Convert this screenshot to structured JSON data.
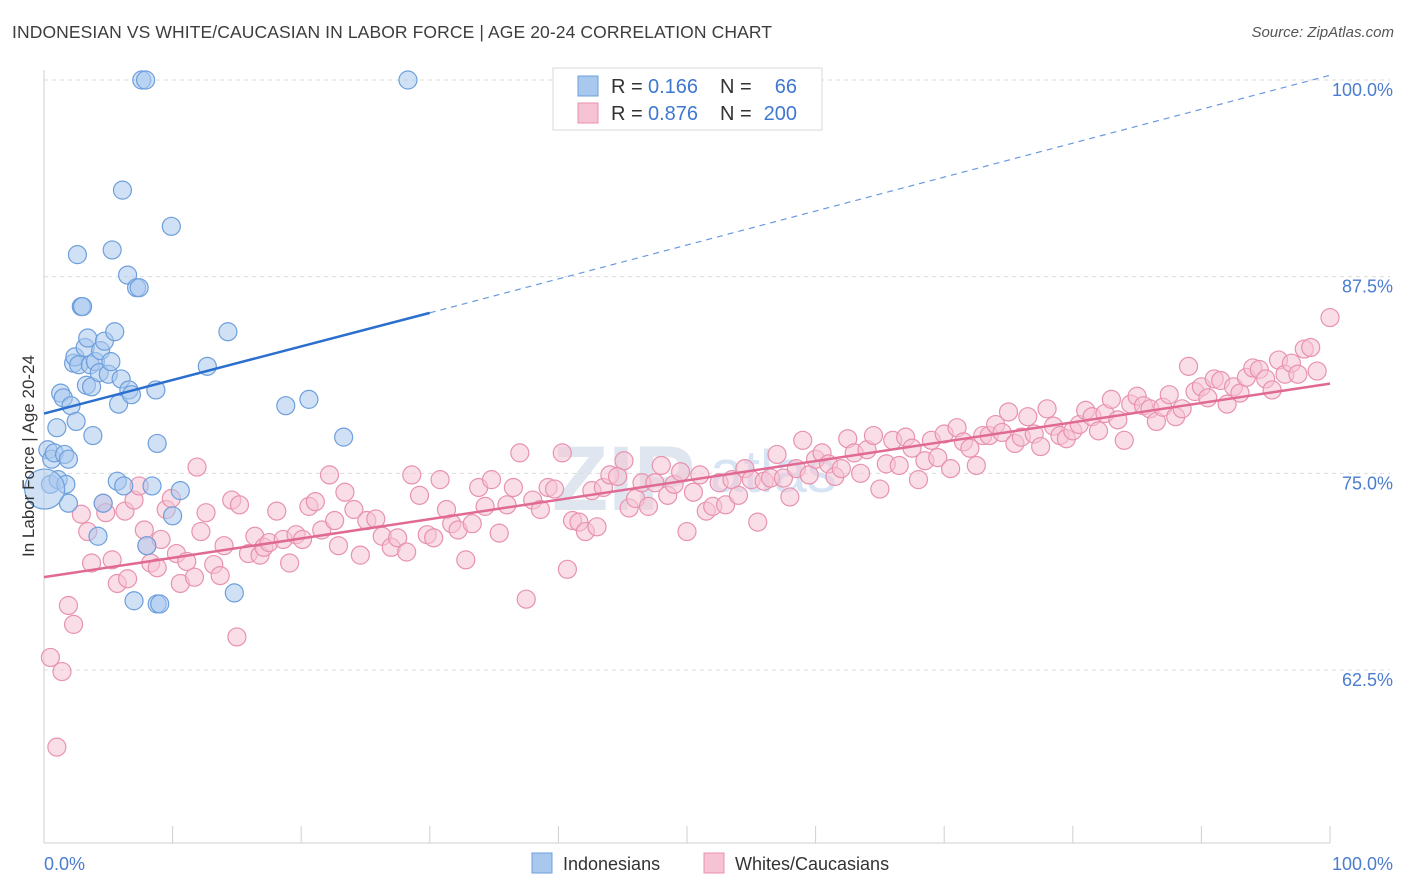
{
  "title": "INDONESIAN VS WHITE/CAUCASIAN IN LABOR FORCE | AGE 20-24 CORRELATION CHART",
  "source": "Source: ZipAtlas.com",
  "watermark": {
    "main": "ZIP",
    "sub": "atlas"
  },
  "colors": {
    "blue_fill": "#a9c8ee",
    "blue_stroke": "#6d9fdc",
    "blue_line": "#2b6fce",
    "pink_fill": "#f6c3d4",
    "pink_stroke": "#e892ae",
    "pink_line": "#e06a93",
    "grid": "#dcdcdc",
    "tick_text": "#4a7cd0"
  },
  "legend": {
    "rows": [
      {
        "r_label": "R =",
        "r_value": "0.166",
        "n_label": "N =",
        "n_value": "66"
      },
      {
        "r_label": "R =",
        "r_value": "0.876",
        "n_label": "N =",
        "n_value": "200"
      }
    ]
  },
  "bottom_legend": [
    "Indonesians",
    "Whites/Caucasians"
  ],
  "chart_data": {
    "type": "scatter",
    "xlabel": "",
    "ylabel": "In Labor Force | Age 20-24",
    "xlim": [
      0,
      100
    ],
    "ylim": [
      50,
      102.5
    ],
    "x_tick_labels": [
      "0.0%",
      "100.0%"
    ],
    "y_ticks": [
      62.5,
      75.0,
      87.5,
      100.0
    ],
    "y_tick_labels": [
      "62.5%",
      "75.0%",
      "87.5%",
      "100.0%"
    ],
    "grid": true,
    "series": [
      {
        "name": "Indonesians",
        "trend": {
          "x0": 0,
          "y0": 78.8,
          "x1": 30,
          "y1": 85.2,
          "dashed_to_x": 100,
          "dashed_to_y": 100.3
        },
        "points": [
          [
            0.3,
            76.5
          ],
          [
            0.5,
            74.3
          ],
          [
            0.6,
            75.9
          ],
          [
            0.8,
            76.3
          ],
          [
            1.0,
            77.9
          ],
          [
            1.1,
            74.6
          ],
          [
            1.3,
            80.1
          ],
          [
            1.5,
            79.8
          ],
          [
            1.6,
            76.2
          ],
          [
            1.7,
            74.3
          ],
          [
            1.9,
            75.9
          ],
          [
            1.9,
            73.1
          ],
          [
            2.1,
            79.3
          ],
          [
            2.3,
            82.0
          ],
          [
            2.4,
            82.4
          ],
          [
            2.5,
            78.3
          ],
          [
            2.6,
            88.9
          ],
          [
            2.7,
            81.9
          ],
          [
            2.9,
            85.6
          ],
          [
            3.0,
            85.6
          ],
          [
            3.2,
            83.0
          ],
          [
            3.3,
            80.6
          ],
          [
            3.4,
            83.6
          ],
          [
            3.6,
            81.9
          ],
          [
            3.7,
            80.5
          ],
          [
            3.8,
            77.4
          ],
          [
            4.0,
            82.1
          ],
          [
            4.2,
            71.0
          ],
          [
            4.3,
            81.4
          ],
          [
            4.4,
            82.8
          ],
          [
            4.6,
            73.1
          ],
          [
            4.7,
            83.4
          ],
          [
            5.0,
            81.3
          ],
          [
            5.2,
            82.1
          ],
          [
            5.3,
            89.2
          ],
          [
            5.5,
            84.0
          ],
          [
            5.7,
            74.5
          ],
          [
            5.8,
            79.4
          ],
          [
            6.0,
            81.0
          ],
          [
            6.1,
            93.0
          ],
          [
            6.2,
            74.2
          ],
          [
            6.5,
            87.6
          ],
          [
            6.6,
            80.3
          ],
          [
            6.8,
            80.0
          ],
          [
            7.0,
            66.9
          ],
          [
            7.2,
            86.8
          ],
          [
            7.4,
            86.8
          ],
          [
            7.6,
            100.0
          ],
          [
            7.9,
            100.0
          ],
          [
            8.0,
            70.4
          ],
          [
            8.4,
            74.2
          ],
          [
            8.7,
            80.3
          ],
          [
            8.8,
            66.7
          ],
          [
            8.8,
            76.9
          ],
          [
            9.0,
            66.7
          ],
          [
            9.9,
            90.7
          ],
          [
            10.0,
            72.3
          ],
          [
            10.6,
            73.9
          ],
          [
            12.7,
            81.8
          ],
          [
            14.3,
            84.0
          ],
          [
            14.8,
            67.4
          ],
          [
            18.8,
            79.3
          ],
          [
            20.6,
            79.7
          ],
          [
            23.3,
            77.3
          ],
          [
            28.3,
            100.0
          ],
          [
            0.05,
            74.0
          ]
        ]
      },
      {
        "name": "Whites/Caucasians",
        "trend": {
          "x0": 0,
          "y0": 68.4,
          "x1": 100,
          "y1": 80.7
        },
        "points": [
          [
            0.5,
            63.3
          ],
          [
            1.0,
            57.6
          ],
          [
            1.4,
            62.4
          ],
          [
            1.9,
            66.6
          ],
          [
            2.3,
            65.4
          ],
          [
            2.9,
            72.4
          ],
          [
            3.4,
            71.3
          ],
          [
            3.7,
            69.3
          ],
          [
            4.6,
            73.1
          ],
          [
            4.8,
            72.5
          ],
          [
            5.3,
            69.5
          ],
          [
            5.7,
            68.0
          ],
          [
            6.3,
            72.6
          ],
          [
            6.5,
            68.3
          ],
          [
            7.0,
            73.3
          ],
          [
            7.4,
            74.2
          ],
          [
            7.8,
            71.4
          ],
          [
            8.0,
            70.4
          ],
          [
            8.3,
            69.3
          ],
          [
            8.8,
            69.0
          ],
          [
            9.1,
            70.8
          ],
          [
            9.5,
            72.7
          ],
          [
            9.9,
            73.4
          ],
          [
            10.3,
            69.9
          ],
          [
            10.6,
            68.0
          ],
          [
            11.1,
            69.4
          ],
          [
            11.7,
            68.4
          ],
          [
            11.9,
            75.4
          ],
          [
            12.2,
            71.3
          ],
          [
            12.6,
            72.5
          ],
          [
            13.2,
            69.2
          ],
          [
            13.7,
            68.5
          ],
          [
            14.0,
            70.4
          ],
          [
            14.6,
            73.3
          ],
          [
            15.0,
            64.6
          ],
          [
            15.2,
            73.0
          ],
          [
            15.9,
            69.9
          ],
          [
            16.4,
            71.0
          ],
          [
            16.8,
            69.8
          ],
          [
            17.1,
            70.3
          ],
          [
            17.5,
            70.6
          ],
          [
            18.1,
            72.6
          ],
          [
            18.6,
            70.8
          ],
          [
            19.1,
            69.3
          ],
          [
            19.6,
            71.1
          ],
          [
            20.1,
            70.8
          ],
          [
            20.6,
            72.9
          ],
          [
            21.1,
            73.2
          ],
          [
            21.6,
            71.4
          ],
          [
            22.2,
            74.9
          ],
          [
            22.6,
            72.0
          ],
          [
            22.9,
            70.4
          ],
          [
            23.4,
            73.8
          ],
          [
            24.1,
            72.7
          ],
          [
            24.6,
            69.8
          ],
          [
            25.1,
            72.0
          ],
          [
            25.8,
            72.1
          ],
          [
            26.3,
            71.0
          ],
          [
            27.0,
            70.3
          ],
          [
            27.5,
            70.9
          ],
          [
            28.2,
            70.0
          ],
          [
            28.6,
            74.9
          ],
          [
            29.2,
            73.6
          ],
          [
            29.8,
            71.1
          ],
          [
            30.3,
            70.9
          ],
          [
            30.8,
            74.6
          ],
          [
            31.3,
            72.7
          ],
          [
            31.7,
            71.8
          ],
          [
            32.2,
            71.4
          ],
          [
            32.8,
            69.5
          ],
          [
            33.3,
            71.8
          ],
          [
            33.8,
            74.1
          ],
          [
            34.3,
            72.9
          ],
          [
            34.8,
            74.6
          ],
          [
            35.4,
            71.2
          ],
          [
            36.0,
            73.0
          ],
          [
            36.5,
            74.1
          ],
          [
            37.0,
            76.3
          ],
          [
            37.5,
            67.0
          ],
          [
            38.0,
            73.3
          ],
          [
            38.6,
            72.7
          ],
          [
            39.2,
            74.1
          ],
          [
            39.7,
            74.0
          ],
          [
            40.3,
            76.3
          ],
          [
            40.7,
            68.9
          ],
          [
            41.1,
            72.0
          ],
          [
            41.6,
            71.9
          ],
          [
            42.1,
            71.3
          ],
          [
            42.6,
            73.9
          ],
          [
            43.0,
            71.6
          ],
          [
            43.5,
            74.1
          ],
          [
            44.0,
            74.9
          ],
          [
            44.6,
            74.8
          ],
          [
            45.1,
            75.8
          ],
          [
            45.5,
            72.8
          ],
          [
            46.0,
            73.4
          ],
          [
            46.5,
            74.4
          ],
          [
            47.0,
            72.9
          ],
          [
            47.5,
            74.4
          ],
          [
            48.0,
            75.5
          ],
          [
            48.5,
            73.6
          ],
          [
            49.0,
            74.3
          ],
          [
            49.5,
            75.1
          ],
          [
            50.0,
            71.3
          ],
          [
            50.5,
            73.8
          ],
          [
            51.0,
            74.9
          ],
          [
            51.5,
            72.6
          ],
          [
            52.0,
            72.9
          ],
          [
            52.5,
            74.4
          ],
          [
            53.0,
            73.0
          ],
          [
            53.5,
            74.6
          ],
          [
            54.0,
            73.6
          ],
          [
            54.5,
            75.3
          ],
          [
            55.0,
            74.6
          ],
          [
            55.5,
            71.9
          ],
          [
            56.0,
            74.5
          ],
          [
            56.5,
            74.7
          ],
          [
            57.0,
            76.2
          ],
          [
            57.5,
            74.7
          ],
          [
            58.0,
            73.5
          ],
          [
            58.5,
            75.3
          ],
          [
            59.0,
            77.1
          ],
          [
            59.5,
            74.9
          ],
          [
            60.0,
            75.9
          ],
          [
            60.5,
            76.3
          ],
          [
            61.0,
            75.6
          ],
          [
            61.5,
            74.8
          ],
          [
            62.0,
            75.3
          ],
          [
            62.5,
            77.2
          ],
          [
            63.0,
            76.3
          ],
          [
            63.5,
            75.0
          ],
          [
            64.0,
            76.5
          ],
          [
            64.5,
            77.4
          ],
          [
            65.0,
            74.0
          ],
          [
            65.5,
            75.6
          ],
          [
            66.0,
            77.1
          ],
          [
            66.5,
            75.5
          ],
          [
            67.0,
            77.3
          ],
          [
            67.5,
            76.6
          ],
          [
            68.0,
            74.6
          ],
          [
            68.5,
            75.8
          ],
          [
            69.0,
            77.1
          ],
          [
            69.5,
            76.0
          ],
          [
            70.0,
            77.5
          ],
          [
            70.5,
            75.3
          ],
          [
            71.0,
            77.9
          ],
          [
            71.5,
            77.0
          ],
          [
            72.0,
            76.6
          ],
          [
            72.5,
            75.5
          ],
          [
            73.0,
            77.4
          ],
          [
            73.5,
            77.4
          ],
          [
            74.0,
            78.1
          ],
          [
            74.5,
            77.6
          ],
          [
            75.0,
            78.9
          ],
          [
            75.5,
            76.9
          ],
          [
            76.0,
            77.3
          ],
          [
            76.5,
            78.6
          ],
          [
            77.0,
            77.5
          ],
          [
            77.5,
            76.7
          ],
          [
            78.0,
            79.1
          ],
          [
            78.5,
            78.0
          ],
          [
            79.0,
            77.4
          ],
          [
            79.5,
            77.2
          ],
          [
            80.0,
            77.7
          ],
          [
            80.5,
            78.1
          ],
          [
            81.0,
            79.0
          ],
          [
            81.5,
            78.6
          ],
          [
            82.0,
            77.7
          ],
          [
            82.5,
            78.8
          ],
          [
            83.0,
            79.7
          ],
          [
            83.5,
            78.4
          ],
          [
            84.0,
            77.1
          ],
          [
            84.5,
            79.4
          ],
          [
            85.0,
            79.9
          ],
          [
            85.5,
            79.3
          ],
          [
            86.0,
            79.1
          ],
          [
            86.5,
            78.3
          ],
          [
            87.0,
            79.2
          ],
          [
            87.5,
            80.0
          ],
          [
            88.0,
            78.6
          ],
          [
            88.5,
            79.1
          ],
          [
            89.0,
            81.8
          ],
          [
            89.5,
            80.2
          ],
          [
            90.0,
            80.5
          ],
          [
            90.5,
            79.8
          ],
          [
            91.0,
            81.0
          ],
          [
            91.5,
            80.9
          ],
          [
            92.0,
            79.4
          ],
          [
            92.5,
            80.5
          ],
          [
            93.0,
            80.1
          ],
          [
            93.5,
            81.1
          ],
          [
            94.0,
            81.7
          ],
          [
            94.5,
            81.6
          ],
          [
            95.0,
            81.0
          ],
          [
            95.5,
            80.3
          ],
          [
            96.0,
            82.2
          ],
          [
            96.5,
            81.3
          ],
          [
            97.0,
            82.0
          ],
          [
            97.5,
            81.3
          ],
          [
            98.0,
            82.9
          ],
          [
            98.5,
            83.0
          ],
          [
            99.0,
            81.5
          ],
          [
            100.0,
            84.9
          ]
        ]
      }
    ]
  }
}
